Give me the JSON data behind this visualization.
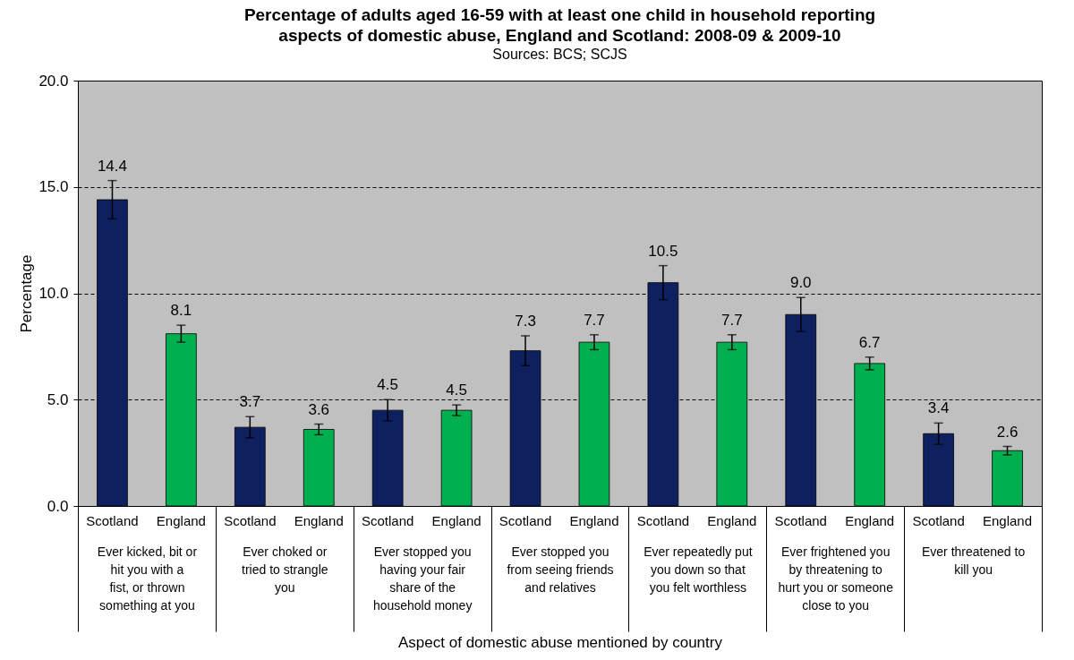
{
  "chart_data": {
    "type": "bar",
    "title": "Percentage of adults aged 16-59 with at least one child in household reporting aspects of domestic abuse, England and Scotland: 2008-09 & 2009-10",
    "subtitle": "Sources:  BCS; SCJS",
    "xlabel": "Aspect of domestic abuse mentioned by country",
    "ylabel": "Percentage",
    "categories": [
      "Ever kicked, bit or hit you with a fist, or thrown something at you",
      "Ever choked or tried to strangle you",
      "Ever stopped you having your fair share of the household money",
      "Ever stopped you from seeing friends and relatives",
      "Ever repeatedly put you down so that you felt worthless",
      "Ever frightened you by threatening to hurt you or someone close to you",
      "Ever threatened to kill you"
    ],
    "series": [
      {
        "name": "Scotland",
        "color": "#0e2060",
        "values": [
          14.4,
          3.7,
          4.5,
          7.3,
          10.5,
          9.0,
          3.4
        ],
        "value_labels": [
          "14.4",
          "3.7",
          "4.5",
          "7.3",
          "10.5",
          "9.0",
          "3.4"
        ],
        "errors": [
          0.9,
          0.5,
          0.5,
          0.7,
          0.8,
          0.8,
          0.5
        ]
      },
      {
        "name": "England",
        "color": "#00b050",
        "values": [
          8.1,
          3.6,
          4.5,
          7.7,
          7.7,
          6.7,
          2.6
        ],
        "value_labels": [
          "8.1",
          "3.6",
          "4.5",
          "7.7",
          "7.7",
          "6.7",
          "2.6"
        ],
        "errors": [
          0.4,
          0.25,
          0.25,
          0.35,
          0.35,
          0.3,
          0.2
        ]
      }
    ],
    "ylim": [
      0,
      20
    ],
    "yticks": [
      {
        "value": 0,
        "label": "0.0"
      },
      {
        "value": 5,
        "label": "5.0"
      },
      {
        "value": 10,
        "label": "10.0"
      },
      {
        "value": 15,
        "label": "15.0"
      },
      {
        "value": 20,
        "label": "20.0"
      }
    ],
    "grid": "y",
    "legend": false
  }
}
